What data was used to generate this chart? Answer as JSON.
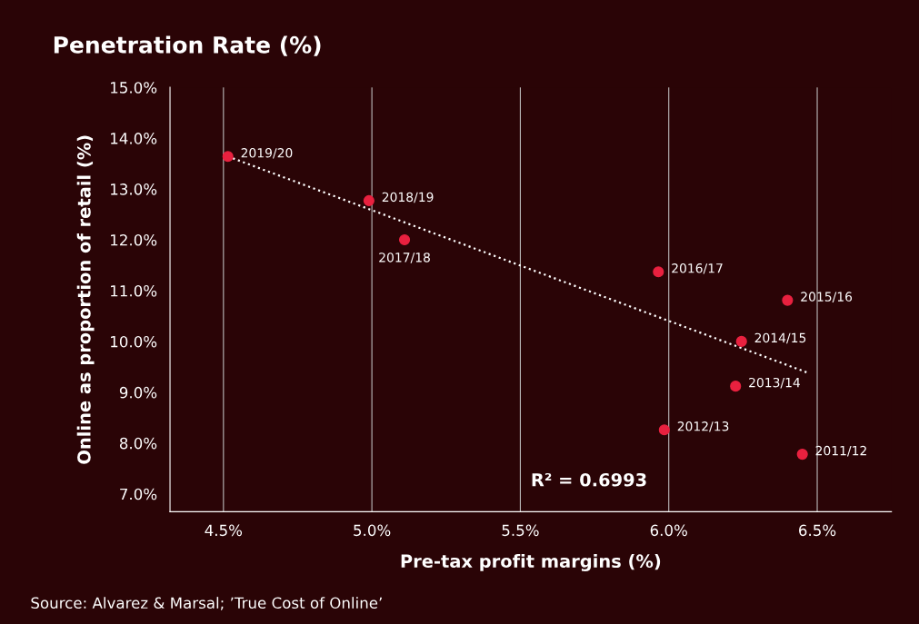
{
  "chart_data": {
    "type": "scatter",
    "title": "Penetration Rate (%)",
    "xlabel": "Pre-tax profit margins (%)",
    "ylabel": "Online as proportion of retail (%)",
    "series": [
      {
        "color": "#e8213f",
        "marker": "circle",
        "x": [
          4.515,
          4.99,
          5.11,
          5.965,
          6.4,
          6.245,
          6.225,
          5.985,
          6.45
        ],
        "values": [
          13.64,
          12.77,
          12.0,
          11.37,
          10.81,
          10.0,
          9.12,
          8.26,
          7.78
        ]
      },
      {
        "type": "line",
        "color": "#ffffff",
        "line_style": "dotted",
        "marker": "none",
        "x": [
          4.515,
          6.47
        ],
        "values": [
          13.64,
          9.38
        ]
      }
    ],
    "xlim": [
      4.32,
      6.75
    ],
    "xticks": [
      {
        "value": 4.5,
        "label": "4.5%"
      },
      {
        "value": 5.0,
        "label": "5.0%"
      },
      {
        "value": 5.5,
        "label": "5.5%"
      },
      {
        "value": 6.0,
        "label": "6.0%"
      },
      {
        "value": 6.5,
        "label": "6.5%"
      }
    ],
    "ylim": [
      6.65,
      15.0
    ],
    "yticks": [
      {
        "value": 7,
        "label": "7.0%"
      },
      {
        "value": 8,
        "label": "8.0%"
      },
      {
        "value": 9,
        "label": "9.0%"
      },
      {
        "value": 10,
        "label": "10.0%"
      },
      {
        "value": 11,
        "label": "11.0%"
      },
      {
        "value": 12,
        "label": "12.0%"
      },
      {
        "value": 13,
        "label": "13.0%"
      },
      {
        "value": 14,
        "label": "14.0%"
      },
      {
        "value": 15,
        "label": "15.0%"
      }
    ],
    "grid": "x",
    "legend": false,
    "annotations": [
      {
        "text": "2019/20",
        "x": 4.515,
        "y": 13.64
      },
      {
        "text": "2018/19",
        "x": 4.99,
        "y": 12.77
      },
      {
        "text": "2017/18",
        "x": 5.11,
        "y": 12.0
      },
      {
        "text": "2016/17",
        "x": 5.965,
        "y": 11.37
      },
      {
        "text": "2015/16",
        "x": 6.4,
        "y": 10.81
      },
      {
        "text": "2014/15",
        "x": 6.245,
        "y": 10.0
      },
      {
        "text": "2013/14",
        "x": 6.225,
        "y": 9.12
      },
      {
        "text": "2012/13",
        "x": 5.985,
        "y": 8.26
      },
      {
        "text": "2011/12",
        "x": 6.45,
        "y": 7.78
      },
      "R² = 0.6993",
      "Source: Alvarez & Marsal; ’True Cost of Online’"
    ]
  }
}
